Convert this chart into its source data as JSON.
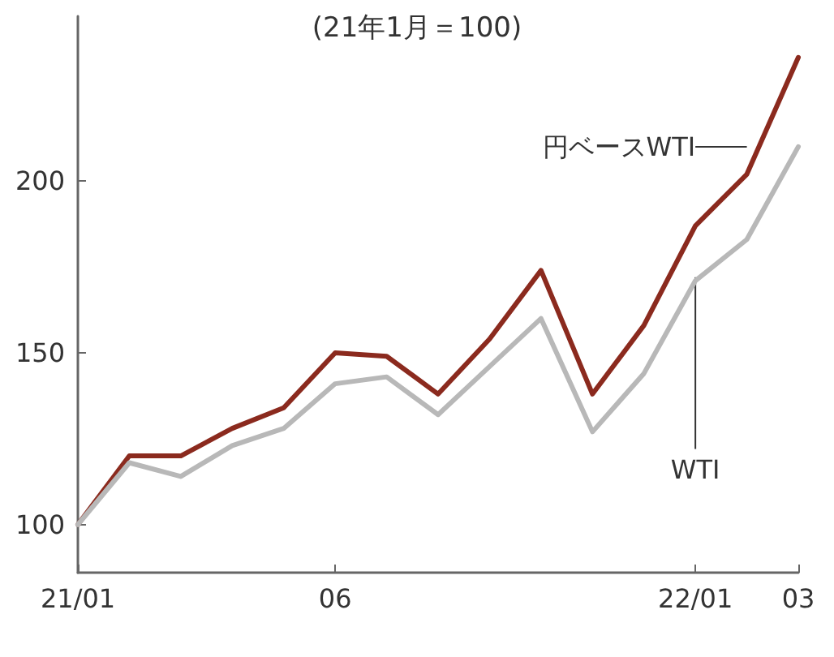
{
  "chart_data": {
    "type": "line",
    "title": "(21年1月＝100)",
    "categories": [
      "21/01",
      null,
      null,
      null,
      null,
      "06",
      null,
      null,
      null,
      null,
      null,
      null,
      "22/01",
      null,
      "03"
    ],
    "series": [
      {
        "name": "円ベースWTI",
        "color": "#8b2a1e",
        "values": [
          100,
          120,
          120,
          128,
          134,
          150,
          149,
          138,
          154,
          174,
          138,
          158,
          187,
          202,
          236
        ]
      },
      {
        "name": "WTI",
        "color": "#b8b8b8",
        "values": [
          100,
          118,
          114,
          123,
          128,
          141,
          143,
          132,
          146,
          160,
          127,
          144,
          171,
          183,
          210
        ]
      }
    ],
    "ylim": [
      86,
      248
    ],
    "yticks": [
      100,
      150,
      200
    ],
    "grid": false,
    "legend": false,
    "marker": "none",
    "line_style": "solid"
  }
}
